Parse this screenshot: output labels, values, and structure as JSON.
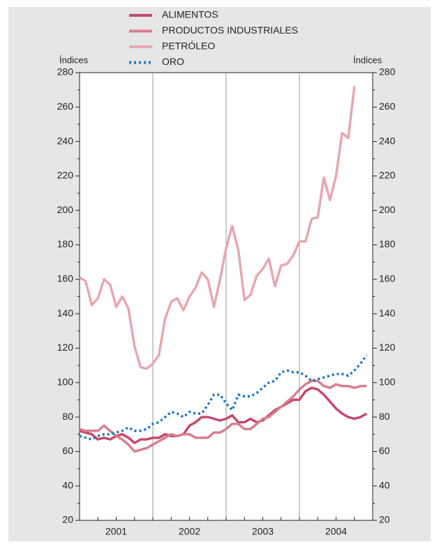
{
  "chart_data": {
    "type": "line",
    "y_axis_label": "Índices",
    "y2_axis_label": "Índices",
    "x": [
      2001,
      2001.083,
      2001.167,
      2001.25,
      2001.333,
      2001.417,
      2001.5,
      2001.583,
      2001.667,
      2001.75,
      2001.833,
      2001.917,
      2002,
      2002.083,
      2002.167,
      2002.25,
      2002.333,
      2002.417,
      2002.5,
      2002.583,
      2002.667,
      2002.75,
      2002.833,
      2002.917,
      2003,
      2003.083,
      2003.167,
      2003.25,
      2003.333,
      2003.417,
      2003.5,
      2003.583,
      2003.667,
      2003.75,
      2003.833,
      2003.917,
      2004,
      2004.083,
      2004.167,
      2004.25,
      2004.333,
      2004.417,
      2004.5,
      2004.583,
      2004.667,
      2004.75,
      2004.833,
      2004.917
    ],
    "xlim": [
      2001,
      2005
    ],
    "xgrid": [
      2002,
      2003,
      2004
    ],
    "xticks": [
      {
        "value": 2001.5,
        "label": "2001"
      },
      {
        "value": 2002.5,
        "label": "2002"
      },
      {
        "value": 2003.5,
        "label": "2003"
      },
      {
        "value": 2004.5,
        "label": "2004"
      }
    ],
    "ylim": [
      20,
      280
    ],
    "yticks": [
      20,
      40,
      60,
      80,
      100,
      120,
      140,
      160,
      180,
      200,
      220,
      240,
      260,
      280
    ],
    "y2lim": [
      20,
      280
    ],
    "y2ticks": [
      20,
      40,
      60,
      80,
      100,
      120,
      140,
      160,
      180,
      200,
      220,
      240,
      260,
      280
    ],
    "series": [
      {
        "name": "ALIMENTOS",
        "color": "#c34a6a",
        "style": "solid",
        "values": [
          72,
          71,
          70,
          67,
          68,
          67,
          69,
          70,
          68,
          65,
          67,
          67,
          68,
          68,
          70,
          69,
          69,
          70,
          75,
          77,
          80,
          80,
          79,
          78,
          79,
          81,
          77,
          77,
          79,
          77,
          78,
          81,
          84,
          86,
          88,
          90,
          90,
          95,
          97,
          96,
          93,
          89,
          85,
          82,
          80,
          79,
          80,
          82
        ]
      },
      {
        "name": "PRODUCTOS INDUSTRIALES",
        "color": "#d87e90",
        "style": "solid",
        "values": [
          73,
          72,
          72,
          72,
          75,
          72,
          69,
          67,
          64,
          60,
          61,
          62,
          64,
          66,
          68,
          70,
          69,
          70,
          70,
          68,
          68,
          68,
          71,
          71,
          73,
          76,
          76,
          73,
          73,
          76,
          79,
          80,
          83,
          86,
          89,
          92,
          96,
          99,
          101,
          101,
          98,
          97,
          99,
          98,
          98,
          97,
          98,
          98
        ]
      },
      {
        "name": "PETRÓLEO",
        "color": "#e6a7b1",
        "style": "solid",
        "values": [
          161,
          159,
          145,
          149,
          160,
          157,
          144,
          150,
          143,
          121,
          109,
          108,
          111,
          116,
          137,
          147,
          149,
          142,
          150,
          155,
          164,
          160,
          144,
          160,
          178,
          191,
          177,
          148,
          151,
          162,
          166,
          172,
          156,
          168,
          169,
          174,
          182,
          182,
          195,
          196,
          219,
          206,
          220,
          245,
          242,
          272,
          null,
          null
        ]
      },
      {
        "name": "ORO",
        "color": "#1f75bf",
        "style": "dotted",
        "values": [
          69,
          68,
          67,
          69,
          70,
          70,
          71,
          72,
          74,
          72,
          72,
          73,
          76,
          77,
          80,
          83,
          82,
          80,
          83,
          82,
          82,
          87,
          93,
          93,
          88,
          84,
          93,
          92,
          92,
          94,
          97,
          100,
          101,
          106,
          107,
          106,
          106,
          104,
          101,
          102,
          103,
          104,
          105,
          105,
          104,
          107,
          111,
          116
        ]
      }
    ]
  }
}
